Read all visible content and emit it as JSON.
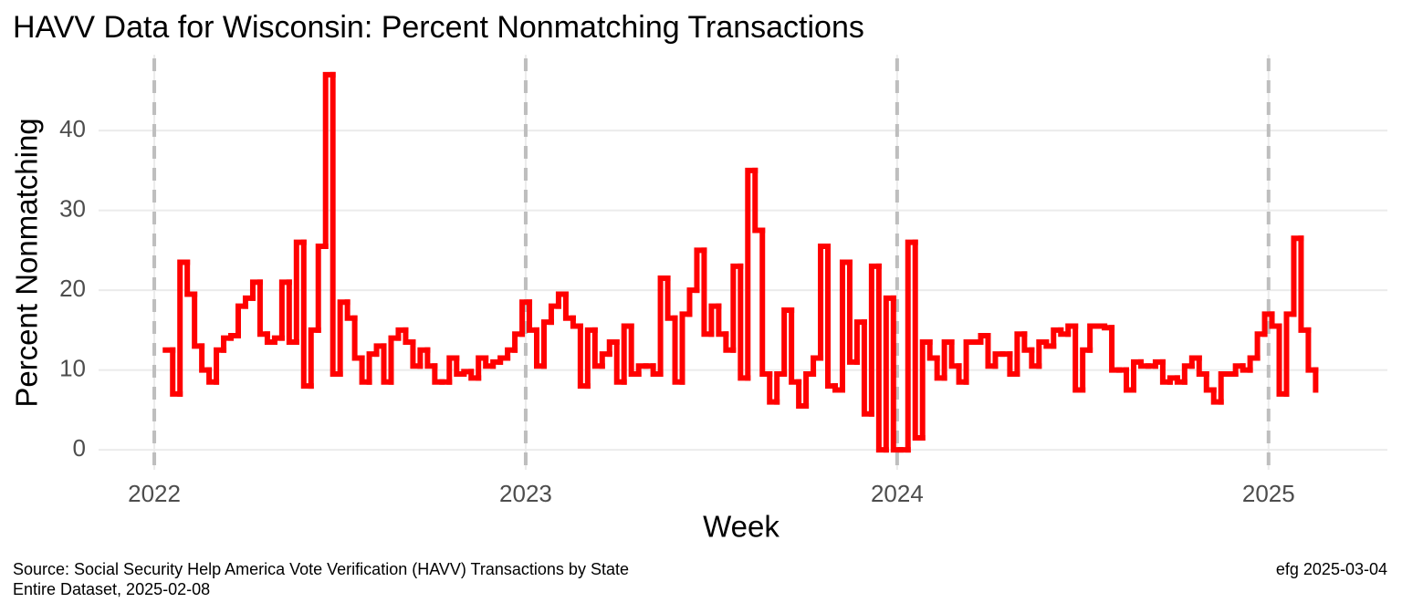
{
  "chart_data": {
    "type": "step",
    "title": "HAVV Data for Wisconsin:  Percent Nonmatching Transactions",
    "x_label": "Week",
    "y_label": "Percent Nonmatching",
    "caption": [
      "Source:  Social Security Help America Vote Verification (HAVV) Transactions by State",
      "Entire Dataset, 2025-02-08"
    ],
    "caption_right": "efg 2025-03-04",
    "color": "#ff0000",
    "grid": true,
    "year_marker_color": "#bebebe",
    "xlim": [
      2021.85,
      2025.32
    ],
    "xticks": [
      2022,
      2023,
      2024,
      2025
    ],
    "ylim": [
      -2.5,
      49.5
    ],
    "yticks": [
      0,
      10,
      20,
      30,
      40
    ],
    "x": [
      2022.03,
      2022.0496,
      2022.0692,
      2022.0888,
      2022.1084,
      2022.128,
      2022.1476,
      2022.1672,
      2022.1868,
      2022.2064,
      2022.226,
      2022.2456,
      2022.2652,
      2022.2848,
      2022.3044,
      2022.324,
      2022.3436,
      2022.3632,
      2022.3828,
      2022.4024,
      2022.422,
      2022.4416,
      2022.4612,
      2022.4808,
      2022.5004,
      2022.52,
      2022.5396,
      2022.5592,
      2022.5788,
      2022.5984,
      2022.618,
      2022.6376,
      2022.6572,
      2022.6768,
      2022.6964,
      2022.716,
      2022.7356,
      2022.7552,
      2022.7748,
      2022.7944,
      2022.814,
      2022.8336,
      2022.8532,
      2022.8728,
      2022.8924,
      2022.912,
      2022.9316,
      2022.9512,
      2022.9708,
      2022.9904,
      2023.01,
      2023.0296,
      2023.0492,
      2023.0688,
      2023.0884,
      2023.108,
      2023.1276,
      2023.1472,
      2023.1668,
      2023.1864,
      2023.206,
      2023.2256,
      2023.2452,
      2023.2648,
      2023.2844,
      2023.304,
      2023.3236,
      2023.3432,
      2023.3628,
      2023.3824,
      2023.402,
      2023.4216,
      2023.4412,
      2023.4608,
      2023.4804,
      2023.5,
      2023.5196,
      2023.5392,
      2023.5588,
      2023.5784,
      2023.598,
      2023.6176,
      2023.6372,
      2023.6568,
      2023.6764,
      2023.696,
      2023.7156,
      2023.7352,
      2023.7548,
      2023.7744,
      2023.794,
      2023.8136,
      2023.8332,
      2023.8528,
      2023.8724,
      2023.892,
      2023.9116,
      2023.9312,
      2023.9508,
      2023.9704,
      2023.99,
      2024.0096,
      2024.0292,
      2024.0488,
      2024.0684,
      2024.088,
      2024.1076,
      2024.1272,
      2024.1468,
      2024.1664,
      2024.186,
      2024.2056,
      2024.2252,
      2024.2448,
      2024.2644,
      2024.284,
      2024.3036,
      2024.3232,
      2024.3428,
      2024.3624,
      2024.382,
      2024.4016,
      2024.4212,
      2024.4408,
      2024.4604,
      2024.48,
      2024.4996,
      2024.5192,
      2024.5388,
      2024.5584,
      2024.578,
      2024.5976,
      2024.6172,
      2024.6368,
      2024.6564,
      2024.676,
      2024.6956,
      2024.7152,
      2024.7348,
      2024.7544,
      2024.774,
      2024.7936,
      2024.8132,
      2024.8328,
      2024.8524,
      2024.872,
      2024.8916,
      2024.9112,
      2024.9308,
      2024.9504,
      2024.97,
      2024.9896,
      2025.0092,
      2025.0288,
      2025.0484,
      2025.068,
      2025.0876,
      2025.1072,
      2025.1268
    ],
    "values": [
      12.5,
      7,
      23.5,
      19.5,
      13,
      10,
      8.5,
      12.5,
      14,
      14.3,
      18,
      19,
      21,
      14.5,
      13.5,
      14,
      21,
      13.5,
      26,
      8,
      15,
      25.5,
      47,
      9.5,
      18.5,
      16.5,
      11.5,
      8.5,
      12,
      13,
      8.5,
      14,
      15,
      13.5,
      10.5,
      12.5,
      10.5,
      8.5,
      8.5,
      11.5,
      9.5,
      9.8,
      9,
      11.5,
      10.5,
      11,
      11.5,
      12.5,
      14.5,
      18.5,
      15,
      10.5,
      16,
      18,
      19.5,
      16.5,
      15.5,
      8,
      15,
      10.5,
      12,
      13.5,
      8.5,
      15.5,
      9.5,
      10.5,
      10.5,
      9.5,
      21.5,
      16.5,
      8.5,
      17,
      20,
      25,
      14.5,
      18,
      14.5,
      12.5,
      23,
      9,
      35,
      27.5,
      9.5,
      6,
      9.5,
      17.5,
      8.5,
      5.5,
      9.5,
      11.5,
      25.5,
      8,
      7.5,
      23.5,
      11,
      16,
      4.5,
      23,
      0,
      19,
      0,
      0,
      26,
      1.5,
      13.5,
      11.5,
      9,
      13.5,
      10.5,
      8.5,
      13.5,
      13.5,
      14.3,
      10.5,
      12,
      12,
      9.5,
      14.5,
      12.5,
      10.5,
      13.5,
      13,
      15,
      14.5,
      15.5,
      7.5,
      12.5,
      15.5,
      15.5,
      15.3,
      10,
      10,
      7.5,
      11,
      10.5,
      10.5,
      11,
      8.5,
      9,
      8.5,
      10.5,
      11.5,
      9.5,
      7.5,
      6,
      9.5,
      9.5,
      10.5,
      10,
      11.5,
      14.5,
      17,
      15.5,
      7,
      17,
      26.5,
      15,
      10,
      7.5
    ]
  }
}
